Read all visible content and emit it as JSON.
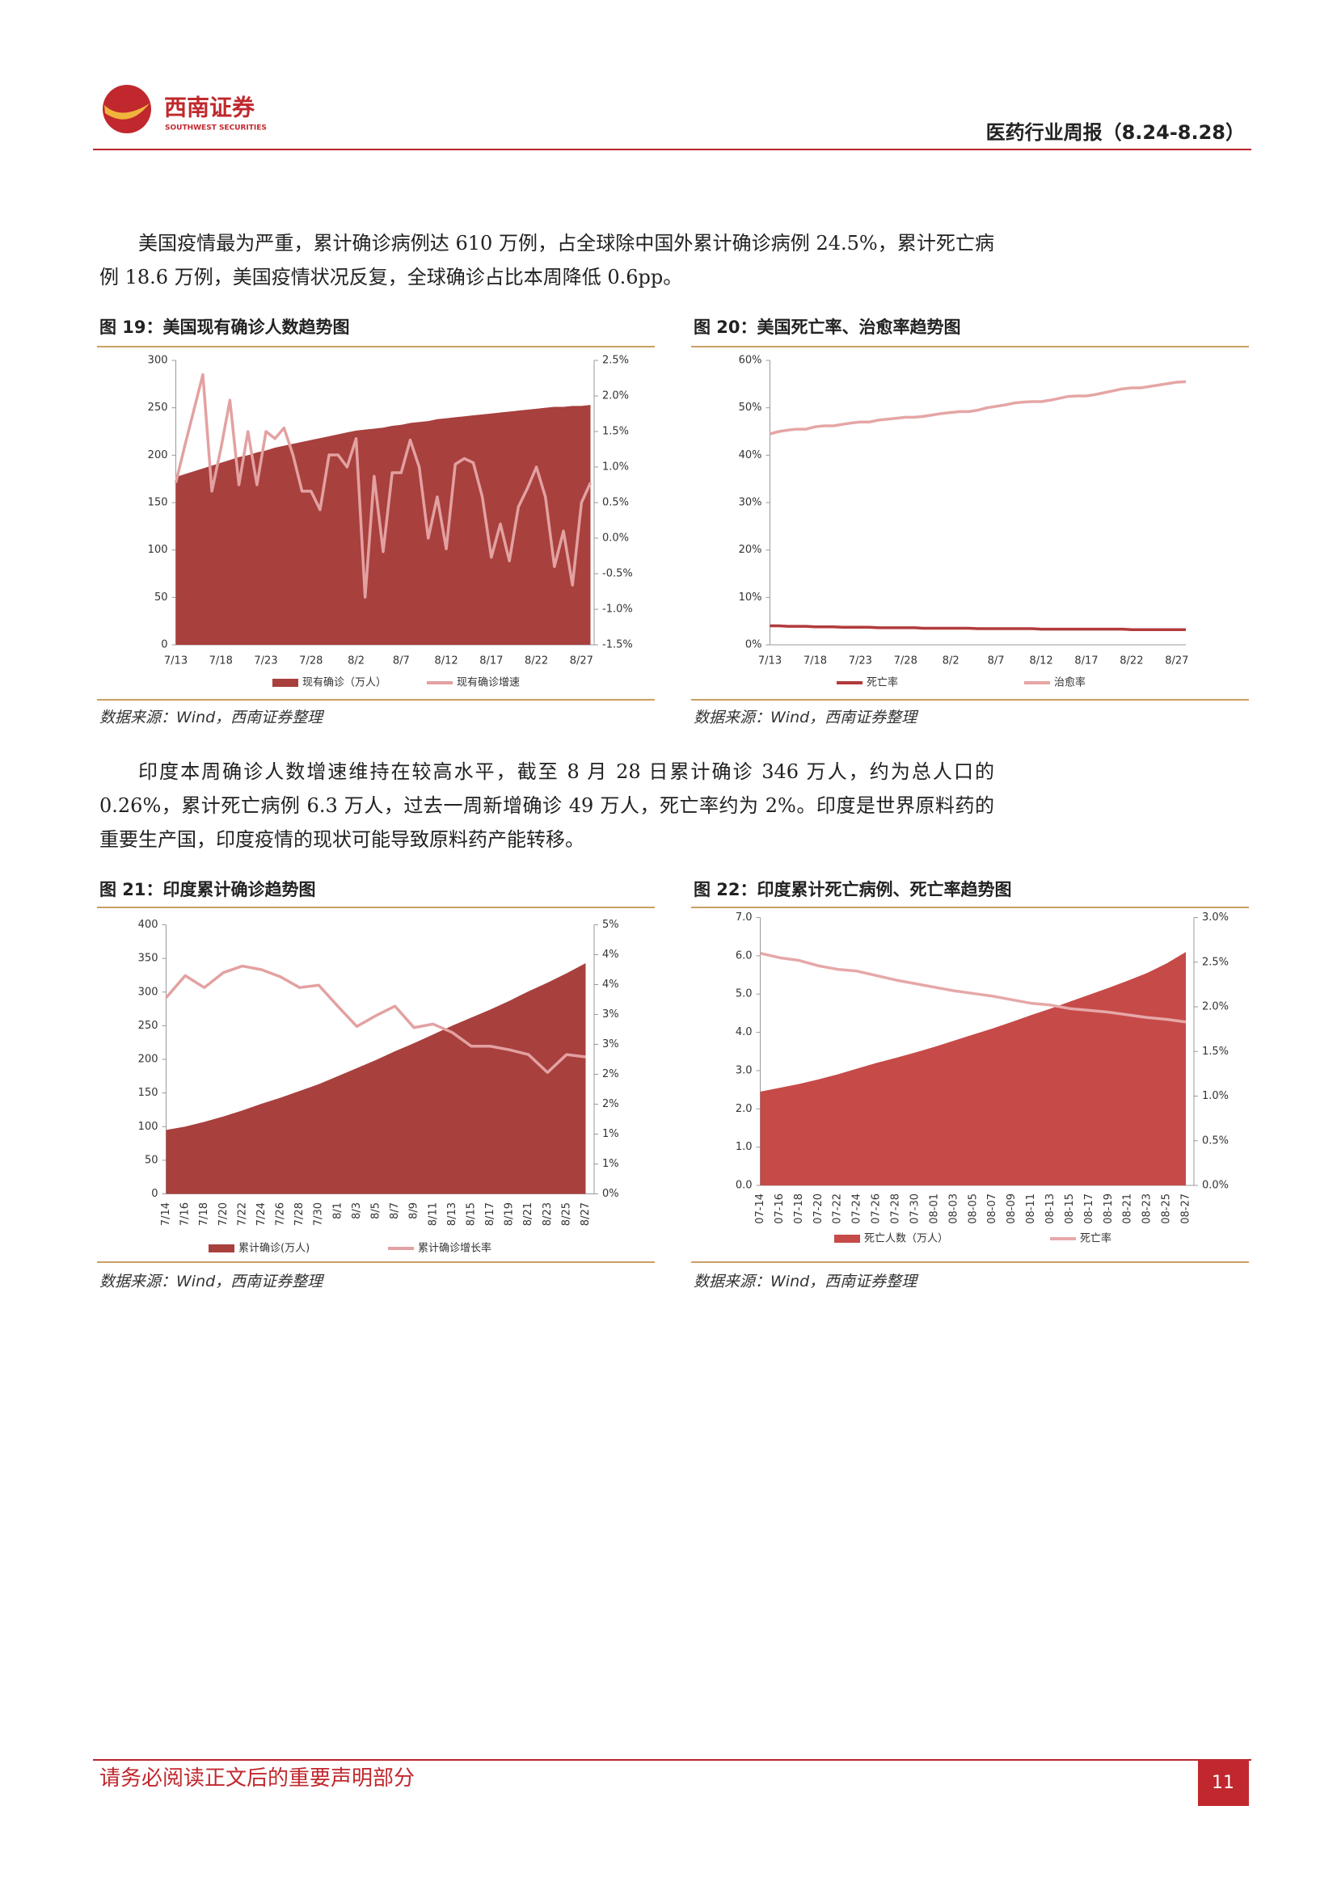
{
  "header": {
    "logo_name": "西南证券",
    "logo_subtitle": "SOUTHWEST SECURITIES",
    "title": "医药行业周报（8.24-8.28）"
  },
  "paragraphs": [
    "美国疫情最为严重，累计确诊病例达 610 万例，占全球除中国外累计确诊病例 24.5%，累计死亡病例 18.6 万例，美国疫情状况反复，全球确诊占比本周降低 0.6pp。",
    "印度本周确诊人数增速维持在较高水平，截至 8 月 28 日累计确诊 346 万人，约为总人口的 0.26%，累计死亡病例 6.3 万人，过去一周新增确诊 49 万人，死亡率约为 2%。印度是世界原料药的重要生产国，印度疫情的现状可能导致原料药产能转移。"
  ],
  "figures": [
    {
      "title": "图 19：美国现有确诊人数趋势图",
      "source": "数据来源：Wind，西南证券整理",
      "chart_data": {
        "type": "combo",
        "categories": [
          "7/13",
          null,
          null,
          null,
          null,
          "7/18",
          null,
          null,
          null,
          null,
          "7/23",
          null,
          null,
          null,
          null,
          "7/28",
          null,
          null,
          null,
          null,
          "8/2",
          null,
          null,
          null,
          null,
          "8/7",
          null,
          null,
          null,
          null,
          "8/12",
          null,
          null,
          null,
          null,
          "8/17",
          null,
          null,
          null,
          null,
          "8/22",
          null,
          null,
          null,
          null,
          "8/27",
          null
        ],
        "ylim": [
          0,
          300
        ],
        "yticks": [
          0,
          50,
          100,
          150,
          200,
          250,
          300
        ],
        "y2lim": [
          -1.5,
          2.5
        ],
        "y2ticks": [
          {
            "value": -1.5,
            "label": "-1.5%"
          },
          {
            "value": -1,
            "label": "-1.0%"
          },
          {
            "value": -0.5,
            "label": "-0.5%"
          },
          {
            "value": 0,
            "label": "0.0%"
          },
          {
            "value": 0.5,
            "label": "0.5%"
          },
          {
            "value": 1,
            "label": "1.0%"
          },
          {
            "value": 1.5,
            "label": "1.5%"
          },
          {
            "value": 2,
            "label": "2.0%"
          },
          {
            "value": 2.5,
            "label": "2.5%"
          }
        ],
        "series": [
          {
            "name": "现有确诊（万人）",
            "type": "area",
            "color": "#a8403e",
            "values": [
              177,
              180,
              183,
              186,
              189,
              192,
              195,
              198,
              200,
              203,
              205,
              208,
              210,
              212,
              214,
              216,
              218,
              220,
              222,
              224,
              226,
              227,
              228,
              229,
              231,
              232,
              234,
              235,
              236,
              238,
              239,
              240,
              241,
              242,
              243,
              244,
              245,
              246,
              247,
              248,
              249,
              250,
              251,
              251,
              252,
              252,
              253
            ]
          },
          {
            "name": "现有确诊增速",
            "type": "line",
            "axis": "y2",
            "color": "#e3a1a1",
            "values": [
              0.78,
              1.3,
              1.8,
              2.3,
              0.66,
              1.26,
              1.94,
              0.75,
              1.5,
              0.75,
              1.5,
              1.4,
              1.55,
              1.17,
              0.66,
              0.66,
              0.4,
              1.17,
              1.17,
              1.0,
              1.4,
              -0.83,
              0.87,
              -0.19,
              0.92,
              0.92,
              1.38,
              1.0,
              0.0,
              0.58,
              -0.15,
              1.04,
              1.12,
              1.06,
              0.58,
              -0.27,
              0.2,
              -0.32,
              0.44,
              0.7,
              1.0,
              0.58,
              -0.4,
              0.1,
              -0.66,
              0.5,
              0.78
            ]
          }
        ]
      }
    },
    {
      "title": "图 20：美国死亡率、治愈率趋势图",
      "source": "数据来源：Wind，西南证券整理",
      "chart_data": {
        "type": "line",
        "categories": [
          "7/13",
          null,
          null,
          null,
          null,
          "7/18",
          null,
          null,
          null,
          null,
          "7/23",
          null,
          null,
          null,
          null,
          "7/28",
          null,
          null,
          null,
          null,
          "8/2",
          null,
          null,
          null,
          null,
          "8/7",
          null,
          null,
          null,
          null,
          "8/12",
          null,
          null,
          null,
          null,
          "8/17",
          null,
          null,
          null,
          null,
          "8/22",
          null,
          null,
          null,
          null,
          "8/27",
          null
        ],
        "ylim": [
          0,
          60
        ],
        "yticks": [
          {
            "value": 0,
            "label": "0%"
          },
          {
            "value": 10,
            "label": "10%"
          },
          {
            "value": 20,
            "label": "20%"
          },
          {
            "value": 30,
            "label": "30%"
          },
          {
            "value": 40,
            "label": "40%"
          },
          {
            "value": 50,
            "label": "50%"
          },
          {
            "value": 60,
            "label": "60%"
          }
        ],
        "series": [
          {
            "name": "死亡率",
            "type": "line",
            "color": "#b23b3b",
            "values": [
              4.0,
              4.0,
              3.9,
              3.9,
              3.9,
              3.8,
              3.8,
              3.8,
              3.7,
              3.7,
              3.7,
              3.7,
              3.6,
              3.6,
              3.6,
              3.6,
              3.6,
              3.5,
              3.5,
              3.5,
              3.5,
              3.5,
              3.5,
              3.4,
              3.4,
              3.4,
              3.4,
              3.4,
              3.4,
              3.4,
              3.3,
              3.3,
              3.3,
              3.3,
              3.3,
              3.3,
              3.3,
              3.3,
              3.3,
              3.3,
              3.2,
              3.2,
              3.2,
              3.2,
              3.2,
              3.2,
              3.2
            ]
          },
          {
            "name": "治愈率",
            "type": "line",
            "color": "#e6a5a5",
            "values": [
              44.5,
              45,
              45.3,
              45.5,
              45.5,
              46,
              46.2,
              46.2,
              46.5,
              46.8,
              47,
              47,
              47.4,
              47.6,
              47.8,
              48,
              48,
              48.2,
              48.5,
              48.8,
              49,
              49.2,
              49.2,
              49.5,
              50,
              50.3,
              50.6,
              51,
              51.2,
              51.3,
              51.3,
              51.6,
              52,
              52.4,
              52.5,
              52.5,
              52.8,
              53.2,
              53.6,
              54,
              54.2,
              54.2,
              54.5,
              54.8,
              55.1,
              55.4,
              55.5
            ]
          }
        ]
      }
    },
    {
      "title": "图 21：印度累计确诊趋势图",
      "source": "数据来源：Wind，西南证券整理",
      "chart_data": {
        "type": "combo",
        "categories": [
          "7/14",
          "7/16",
          "7/18",
          "7/20",
          "7/22",
          "7/24",
          "7/26",
          "7/28",
          "7/30",
          "8/1",
          "8/3",
          "8/5",
          "8/7",
          "8/9",
          "8/11",
          "8/13",
          "8/15",
          "8/17",
          "8/19",
          "8/21",
          "8/23",
          "8/25",
          "8/27"
        ],
        "ylim": [
          0,
          400
        ],
        "yticks": [
          0,
          50,
          100,
          150,
          200,
          250,
          300,
          350,
          400
        ],
        "y2lim": [
          0,
          4.5
        ],
        "y2ticks": [
          {
            "value": 0,
            "label": "0%"
          },
          {
            "value": 0.5,
            "label": "1%"
          },
          {
            "value": 1,
            "label": "1%"
          },
          {
            "value": 1.5,
            "label": "2%"
          },
          {
            "value": 2,
            "label": "2%"
          },
          {
            "value": 2.5,
            "label": "3%"
          },
          {
            "value": 3,
            "label": "3%"
          },
          {
            "value": 3.5,
            "label": "4%"
          },
          {
            "value": 4,
            "label": "4%"
          },
          {
            "value": 4.5,
            "label": "5%"
          }
        ],
        "series": [
          {
            "name": "累计确诊(万人)",
            "type": "area",
            "color": "#a8403e",
            "values": [
              95,
              100,
              107,
              115,
              124,
              134,
              143,
              153,
              163,
              175,
              187,
              199,
              212,
              224,
              237,
              250,
              262,
              274,
              287,
              301,
              314,
              328,
              343
            ]
          },
          {
            "name": "累计确诊增长率",
            "type": "line",
            "axis": "y2",
            "color": "#e3a1a1",
            "values": [
              3.28,
              3.65,
              3.45,
              3.7,
              3.81,
              3.75,
              3.63,
              3.45,
              3.49,
              3.14,
              2.8,
              2.98,
              3.14,
              2.78,
              2.84,
              2.7,
              2.47,
              2.47,
              2.41,
              2.33,
              2.03,
              2.33,
              2.29
            ]
          }
        ]
      }
    },
    {
      "title": "图 22：印度累计死亡病例、死亡率趋势图",
      "source": "数据来源：Wind，西南证券整理",
      "chart_data": {
        "type": "combo",
        "categories": [
          "07-14",
          "07-16",
          "07-18",
          "07-20",
          "07-22",
          "07-24",
          "07-26",
          "07-28",
          "07-30",
          "08-01",
          "08-03",
          "08-05",
          "08-07",
          "08-09",
          "08-11",
          "08-13",
          "08-15",
          "08-17",
          "08-19",
          "08-21",
          "08-23",
          "08-25",
          "08-27"
        ],
        "ylim": [
          0,
          7
        ],
        "yticks": [
          {
            "value": 0,
            "label": "0.0"
          },
          {
            "value": 1,
            "label": "1.0"
          },
          {
            "value": 2,
            "label": "2.0"
          },
          {
            "value": 3,
            "label": "3.0"
          },
          {
            "value": 4,
            "label": "4.0"
          },
          {
            "value": 5,
            "label": "5.0"
          },
          {
            "value": 6,
            "label": "6.0"
          },
          {
            "value": 7,
            "label": "7.0"
          }
        ],
        "y2lim": [
          0,
          3
        ],
        "y2ticks": [
          {
            "value": 0,
            "label": "0.0%"
          },
          {
            "value": 0.5,
            "label": "0.5%"
          },
          {
            "value": 1,
            "label": "1.0%"
          },
          {
            "value": 1.5,
            "label": "1.5%"
          },
          {
            "value": 2,
            "label": "2.0%"
          },
          {
            "value": 2.5,
            "label": "2.5%"
          },
          {
            "value": 3,
            "label": "3.0%"
          }
        ],
        "series": [
          {
            "name": "死亡人数（万人）",
            "type": "area",
            "color": "#c64a48",
            "values": [
              2.45,
              2.55,
              2.65,
              2.77,
              2.9,
              3.05,
              3.2,
              3.33,
              3.47,
              3.62,
              3.78,
              3.94,
              4.1,
              4.27,
              4.45,
              4.62,
              4.8,
              4.98,
              5.16,
              5.35,
              5.55,
              5.8,
              6.1
            ]
          },
          {
            "name": "死亡率",
            "type": "line",
            "axis": "y2",
            "color": "#e6a8a8",
            "values": [
              2.6,
              2.55,
              2.52,
              2.46,
              2.42,
              2.4,
              2.35,
              2.3,
              2.26,
              2.22,
              2.18,
              2.15,
              2.12,
              2.08,
              2.04,
              2.02,
              1.98,
              1.96,
              1.94,
              1.91,
              1.88,
              1.86,
              1.83
            ]
          }
        ]
      }
    }
  ],
  "footer": {
    "disclaimer": "请务必阅读正文后的重要声明部分",
    "page": 11
  }
}
